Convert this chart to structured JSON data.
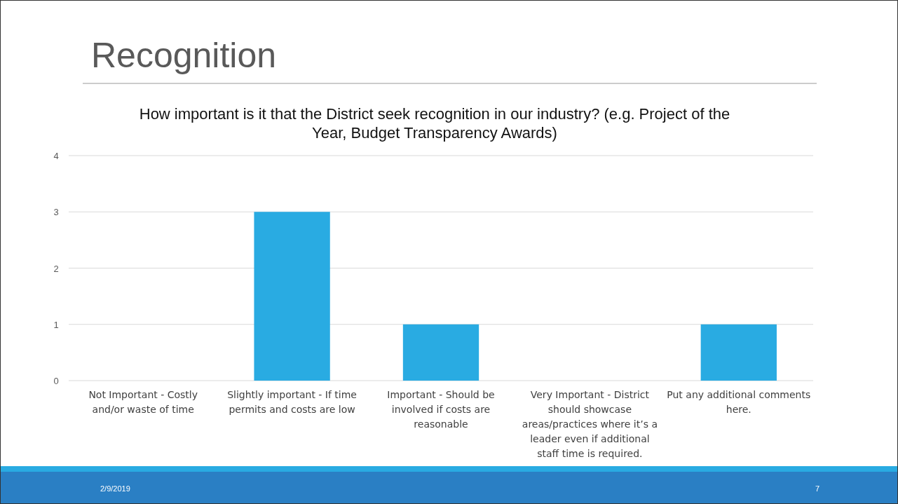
{
  "chart_data": {
    "type": "bar",
    "title": "Recognition",
    "subtitle": "How important is it that the District seek recognition in our industry? (e.g. Project of the Year, Budget Transparency Awards)",
    "categories": [
      "Not Important - Costly and/or waste of time",
      "Slightly important - If time permits and costs are low",
      "Important - Should be involved if costs are reasonable",
      "Very Important - District should showcase areas/practices where it’s a leader even if additional staff time is required.",
      "Put any additional comments here."
    ],
    "values": [
      0,
      3,
      1,
      0,
      1
    ],
    "color": "#29abe2",
    "ylim": [
      0,
      4
    ],
    "yticks": [
      0,
      1,
      2,
      3,
      4
    ],
    "grid": "y",
    "annotations": [
      "2/9/2019",
      "7"
    ]
  }
}
